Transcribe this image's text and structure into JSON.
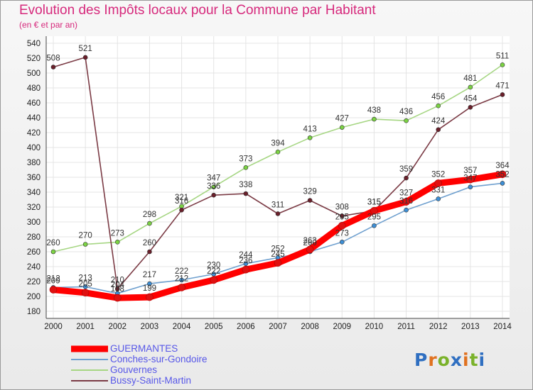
{
  "chart_data": {
    "type": "line",
    "title": "Evolution des Impôts locaux pour la Commune par Habitant",
    "subtitle": "(en € et par an)",
    "x": [
      "2000",
      "2001",
      "2002",
      "2003",
      "2004",
      "2005",
      "2006",
      "2007",
      "2008",
      "2009",
      "2010",
      "2011",
      "2012",
      "2013",
      "2014"
    ],
    "ylim": [
      180,
      540
    ],
    "yticks": [
      180,
      200,
      220,
      240,
      260,
      280,
      300,
      320,
      340,
      360,
      380,
      400,
      420,
      440,
      460,
      480,
      500,
      520,
      540
    ],
    "series": [
      {
        "name": "GUERMANTES",
        "color": "#ff0000",
        "marker": "#e01010",
        "values": [
          209,
          205,
          198,
          199,
          212,
          222,
          236,
          245,
          263,
          295,
          315,
          327,
          352,
          357,
          364
        ]
      },
      {
        "name": "Conches-sur-Gondoire",
        "color": "#6fa0cf",
        "marker": "#3d8fd6",
        "values": [
          212,
          213,
          204,
          217,
          222,
          230,
          244,
          252,
          260,
          273,
          295,
          316,
          331,
          347,
          352
        ]
      },
      {
        "name": "Gouvernes",
        "color": "#a6d683",
        "marker": "#7bd343",
        "values": [
          260,
          270,
          273,
          298,
          321,
          347,
          373,
          394,
          413,
          427,
          438,
          436,
          456,
          481,
          511
        ]
      },
      {
        "name": "Bussy-Saint-Martin",
        "color": "#7b3b45",
        "marker": "#6a1f2a",
        "values": [
          508,
          521,
          210,
          260,
          316,
          336,
          338,
          311,
          329,
          308,
          315,
          359,
          424,
          454,
          471
        ]
      }
    ]
  },
  "logo": "Proxiti"
}
